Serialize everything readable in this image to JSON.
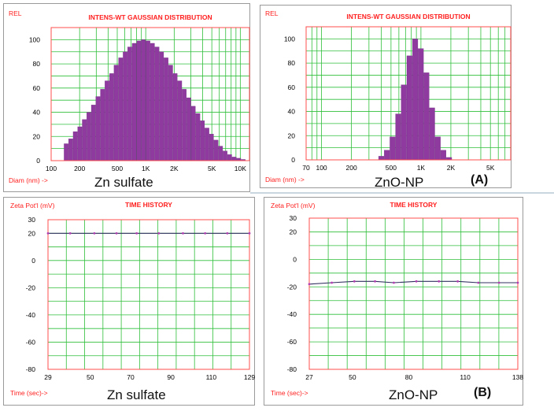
{
  "colors": {
    "grid": "#2fbf3a",
    "frame": "#ff4c4c",
    "bar": "#8e3a9f",
    "title": "#ff2020",
    "label": "#ff2020",
    "tick": "#000000",
    "line": "#303060",
    "marker": "#b040b0"
  },
  "panels": {
    "a_left_caption": "Zn sulfate",
    "a_right_caption": "ZnO-NP",
    "a_tag": "(A)",
    "b_left_caption": "Zn sulfate",
    "b_right_caption": "ZnO-NP",
    "b_tag": "(B)"
  },
  "chart_data": [
    {
      "type": "bar",
      "title": "INTENS-WT GAUSSIAN DISTRIBUTION",
      "ylabel": "REL",
      "xlabel": "Diam (nm) ->",
      "x_scale": "log",
      "xlim": [
        100,
        12500
      ],
      "ylim": [
        0,
        110
      ],
      "x_ticks": [
        100,
        200,
        500,
        1000,
        2000,
        5000,
        10000
      ],
      "x_tick_labels": [
        "100",
        "200",
        "500",
        "1K",
        "2K",
        "5K",
        "10K"
      ],
      "y_ticks": [
        0,
        20,
        40,
        60,
        80,
        100
      ],
      "bin_min": 137,
      "bin_max": 11400,
      "values": [
        14,
        18,
        24,
        28,
        34,
        40,
        46,
        53,
        59,
        66,
        72,
        79,
        85,
        90,
        94,
        97,
        99,
        100,
        99,
        97,
        94,
        90,
        85,
        79,
        72,
        66,
        59,
        52,
        45,
        39,
        33,
        27,
        22,
        17,
        12,
        8,
        5,
        3,
        2,
        1
      ]
    },
    {
      "type": "bar",
      "title": "INTENS-WT GAUSSIAN DISTRIBUTION",
      "ylabel": "REL",
      "xlabel": "Diam (nm) ->",
      "x_scale": "log",
      "xlim": [
        70,
        8000
      ],
      "ylim": [
        0,
        110
      ],
      "x_ticks": [
        70,
        100,
        200,
        500,
        1000,
        2000,
        5000
      ],
      "x_tick_labels": [
        "70",
        "100",
        "200",
        "500",
        "1K",
        "2K",
        "5K"
      ],
      "y_ticks": [
        0,
        20,
        40,
        60,
        80,
        100
      ],
      "bin_min": 375,
      "bin_max": 2055,
      "values": [
        3,
        8,
        19,
        38,
        62,
        86,
        100,
        92,
        72,
        43,
        19,
        8,
        2
      ]
    },
    {
      "type": "line",
      "title": "TIME HISTORY",
      "ylabel": "Zeta Pot'l (mV)",
      "xlabel": "Time (sec)->",
      "xlim": [
        29,
        129
      ],
      "ylim": [
        -80,
        30
      ],
      "x_ticks": [
        29,
        50,
        70,
        90,
        110,
        129
      ],
      "y_ticks": [
        30,
        20,
        0,
        -20,
        -40,
        -60,
        -80
      ],
      "x_grid_divisions": 11,
      "x": [
        29,
        40,
        52,
        63,
        73,
        84,
        96,
        107,
        118,
        129
      ],
      "y": [
        20,
        20,
        20,
        20,
        20,
        20,
        20,
        20,
        20,
        20
      ]
    },
    {
      "type": "line",
      "title": "TIME HISTORY",
      "ylabel": "Zeta Pot'l (mV)",
      "xlabel": "Time (sec)->",
      "xlim": [
        27,
        138
      ],
      "ylim": [
        -80,
        30
      ],
      "x_ticks": [
        27,
        50,
        80,
        110,
        138
      ],
      "y_ticks": [
        30,
        20,
        0,
        -20,
        -40,
        -60,
        -80
      ],
      "x_grid_divisions": 11,
      "x": [
        27,
        39,
        51,
        62,
        72,
        84,
        96,
        106,
        117,
        128,
        138
      ],
      "y": [
        -18,
        -17,
        -16,
        -16,
        -17,
        -16,
        -16,
        -16,
        -17,
        -17,
        -17
      ]
    }
  ]
}
